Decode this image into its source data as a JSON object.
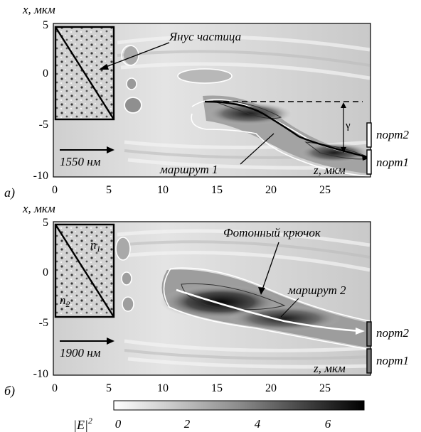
{
  "panels": [
    {
      "letter": "а)",
      "x_axis_label": "x, мкм",
      "z_axis_label": "z, мкм",
      "z_ticks": [
        "0",
        "5",
        "10",
        "15",
        "20",
        "25"
      ],
      "x_ticks": [
        "5",
        "0",
        "-5",
        "-10"
      ],
      "particle_label": "Янус частица",
      "wavelength_label": "1550 нм",
      "route_label": "маршрут 1",
      "angle_label": "γ",
      "port_upper": "порт2",
      "port_lower": "порт1"
    },
    {
      "letter": "б)",
      "x_axis_label": "x, мкм",
      "z_axis_label": "z, мкм",
      "z_ticks": [
        "0",
        "5",
        "10",
        "15",
        "20",
        "25"
      ],
      "x_ticks": [
        "5",
        "0",
        "-5",
        "-10"
      ],
      "hook_label": "Фотонный крючок",
      "route_label": "маршрут 2",
      "wavelength_label": "1900 нм",
      "n1": "n",
      "n1_sub": "1",
      "n2": "n",
      "n2_sub": "2",
      "port_upper": "порт2",
      "port_lower": "порт1"
    }
  ],
  "colorbar": {
    "label": "|E|",
    "label_sup": "2",
    "ticks": [
      "0",
      "2",
      "4",
      "6"
    ],
    "min_color": "#ffffff",
    "max_color": "#000000"
  },
  "colors": {
    "contour": "#ffffff",
    "route1": "#000000",
    "route2": "#ffffff",
    "frame": "#000000"
  }
}
